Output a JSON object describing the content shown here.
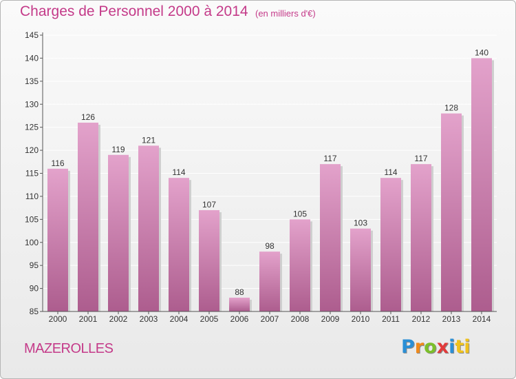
{
  "header": {
    "title": "Charges de Personnel 2000 à 2014",
    "subtitle": "(en milliers d'€)"
  },
  "footer": {
    "commune": "MAZEROLLES",
    "logo_text": "Proxiti",
    "logo_letters": [
      "P",
      "r",
      "o",
      "x",
      "i",
      "ti"
    ]
  },
  "colors": {
    "bar_top": "#e3a2cb",
    "bar_bottom": "#ad5d8e",
    "text_accent": "#c43a89",
    "grid": "#ffffff"
  },
  "chart_data": {
    "type": "bar",
    "categories": [
      "2000",
      "2001",
      "2002",
      "2003",
      "2004",
      "2005",
      "2006",
      "2007",
      "2008",
      "2009",
      "2010",
      "2011",
      "2012",
      "2013",
      "2014"
    ],
    "values": [
      116,
      126,
      119,
      121,
      114,
      107,
      88,
      98,
      105,
      117,
      103,
      114,
      117,
      128,
      140
    ],
    "ylim": [
      85,
      145
    ],
    "yticks": [
      85,
      90,
      95,
      100,
      105,
      110,
      115,
      120,
      125,
      130,
      135,
      140,
      145
    ],
    "grid": true,
    "data_labels": true
  }
}
